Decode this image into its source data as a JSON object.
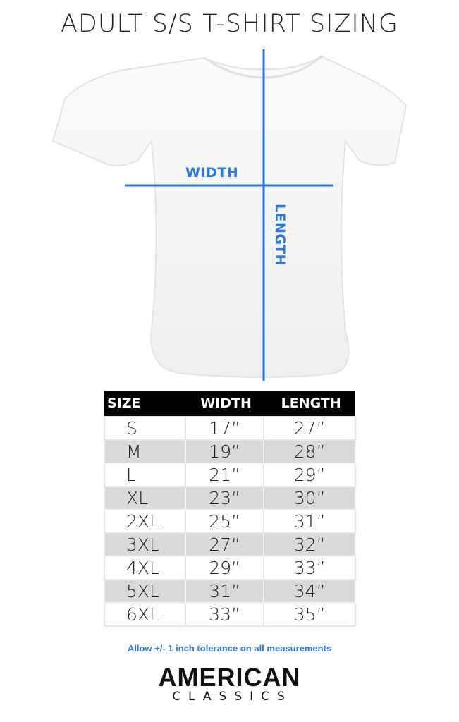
{
  "title": "ADULT S/S T-SHIRT SIZING",
  "diagram": {
    "width_label": "WIDTH",
    "length_label": "LENGTH",
    "line_color": "#2a78e4"
  },
  "table": {
    "headers": [
      "SIZE",
      "WIDTH",
      "LENGTH"
    ],
    "rows": [
      [
        "S",
        "17”",
        "27”"
      ],
      [
        "M",
        "19”",
        "28”"
      ],
      [
        "L",
        "21”",
        "29”"
      ],
      [
        "XL",
        "23”",
        "30”"
      ],
      [
        "2XL",
        "25”",
        "31”"
      ],
      [
        "3XL",
        "27”",
        "32”"
      ],
      [
        "4XL",
        "29”",
        "33”"
      ],
      [
        "5XL",
        "31”",
        "34”"
      ],
      [
        "6XL",
        "33”",
        "35”"
      ]
    ]
  },
  "note": "Allow +/- 1 inch tolerance on all measurements",
  "logo": {
    "line1": "AMERICAN",
    "line2": "CLASSICS"
  }
}
